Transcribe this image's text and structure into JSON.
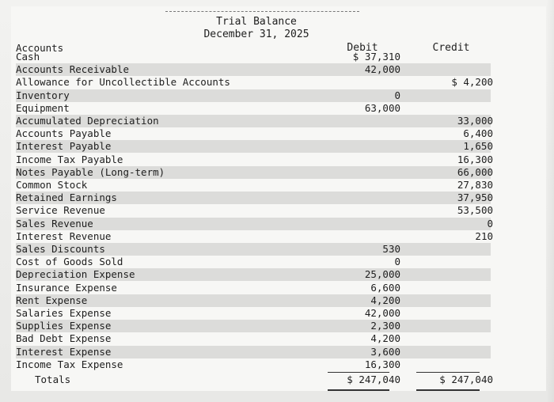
{
  "report": {
    "title": "Trial Balance",
    "date": "December 31, 2025",
    "col_accounts": "Accounts",
    "col_debit": "Debit",
    "col_credit": "Credit"
  },
  "rows": [
    {
      "label": "Cash",
      "debit": "$ 37,310",
      "credit": ""
    },
    {
      "label": "Accounts Receivable",
      "debit": "42,000",
      "credit": ""
    },
    {
      "label": "Allowance for Uncollectible Accounts",
      "debit": "",
      "credit": "$ 4,200"
    },
    {
      "label": "Inventory",
      "debit": "0",
      "credit": ""
    },
    {
      "label": "Equipment",
      "debit": "63,000",
      "credit": ""
    },
    {
      "label": "Accumulated Depreciation",
      "debit": "",
      "credit": "33,000"
    },
    {
      "label": "Accounts Payable",
      "debit": "",
      "credit": "6,400"
    },
    {
      "label": "Interest Payable",
      "debit": "",
      "credit": "1,650"
    },
    {
      "label": "Income Tax Payable",
      "debit": "",
      "credit": "16,300"
    },
    {
      "label": "Notes Payable (Long-term)",
      "debit": "",
      "credit": "66,000"
    },
    {
      "label": "Common Stock",
      "debit": "",
      "credit": "27,830"
    },
    {
      "label": "Retained Earnings",
      "debit": "",
      "credit": "37,950"
    },
    {
      "label": "Service Revenue",
      "debit": "",
      "credit": "53,500"
    },
    {
      "label": "Sales Revenue",
      "debit": "",
      "credit": "0"
    },
    {
      "label": "Interest Revenue",
      "debit": "",
      "credit": "210"
    },
    {
      "label": "Sales Discounts",
      "debit": "530",
      "credit": ""
    },
    {
      "label": "Cost of Goods Sold",
      "debit": "0",
      "credit": ""
    },
    {
      "label": "Depreciation Expense",
      "debit": "25,000",
      "credit": ""
    },
    {
      "label": "Insurance Expense",
      "debit": "6,600",
      "credit": ""
    },
    {
      "label": "Rent Expense",
      "debit": "4,200",
      "credit": ""
    },
    {
      "label": "Salaries Expense",
      "debit": "42,000",
      "credit": ""
    },
    {
      "label": "Supplies Expense",
      "debit": "2,300",
      "credit": ""
    },
    {
      "label": "Bad Debt Expense",
      "debit": "4,200",
      "credit": ""
    },
    {
      "label": "Interest Expense",
      "debit": "3,600",
      "credit": ""
    },
    {
      "label": "Income Tax Expense",
      "debit": "16,300",
      "credit": ""
    }
  ],
  "totals": {
    "label": "Totals",
    "debit": "$ 247,040",
    "credit": "$ 247,040"
  }
}
